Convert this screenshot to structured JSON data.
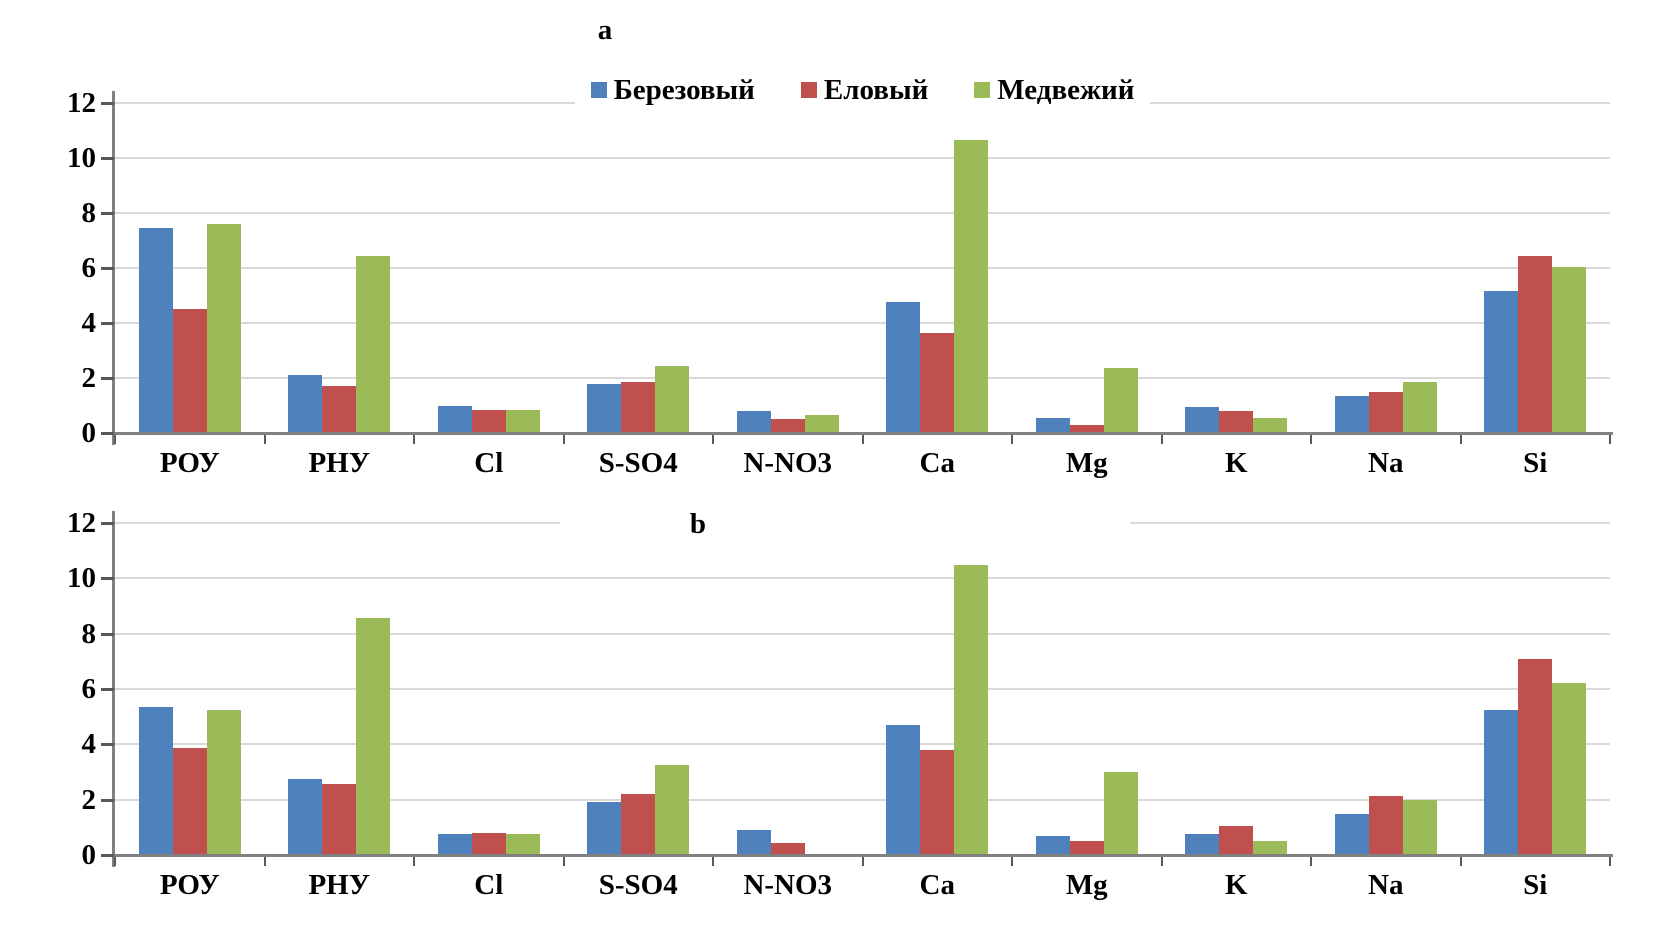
{
  "legend": {
    "items": [
      {
        "label": "Березовый",
        "color": "#4F81BD"
      },
      {
        "label": "Еловый",
        "color": "#C0504D"
      },
      {
        "label": "Медвежий",
        "color": "#9BBB59"
      }
    ]
  },
  "colors": {
    "bar_blue": "#4F81BD",
    "bar_red": "#C0504D",
    "bar_green": "#9BBB59",
    "gridline": "#D9D9D9",
    "axis_line": "#808080",
    "tick": "#595959",
    "text": "#000000"
  },
  "chart_data": [
    {
      "type": "bar",
      "title": "a",
      "categories": [
        "РОУ",
        "РНУ",
        "Cl",
        "S-SO4",
        "N-NO3",
        "Ca",
        "Mg",
        "K",
        "Na",
        "Si"
      ],
      "series": [
        {
          "name": "Березовый",
          "color": "#4F81BD",
          "values": [
            7.45,
            2.1,
            1.0,
            1.8,
            0.8,
            4.75,
            0.55,
            0.95,
            1.35,
            5.15
          ]
        },
        {
          "name": "Еловый",
          "color": "#C0504D",
          "values": [
            4.5,
            1.7,
            0.85,
            1.85,
            0.5,
            3.65,
            0.3,
            0.8,
            1.5,
            6.45
          ]
        },
        {
          "name": "Медвежий",
          "color": "#9BBB59",
          "values": [
            7.6,
            6.45,
            0.85,
            2.45,
            0.65,
            10.65,
            2.35,
            0.55,
            1.85,
            6.05
          ]
        }
      ],
      "xlabel": "",
      "ylabel": "",
      "ylim": [
        0,
        12
      ],
      "yticks": [
        0,
        2,
        4,
        6,
        8,
        10,
        12
      ],
      "grid": true,
      "legend_position": "top-center"
    },
    {
      "type": "bar",
      "title": "b",
      "categories": [
        "РОУ",
        "РНУ",
        "Cl",
        "S-SO4",
        "N-NO3",
        "Ca",
        "Mg",
        "K",
        "Na",
        "Si"
      ],
      "series": [
        {
          "name": "Березовый",
          "color": "#4F81BD",
          "values": [
            5.35,
            2.75,
            0.75,
            1.9,
            0.9,
            4.7,
            0.7,
            0.75,
            1.5,
            5.25
          ]
        },
        {
          "name": "Еловый",
          "color": "#C0504D",
          "values": [
            3.85,
            2.55,
            0.8,
            2.2,
            0.45,
            3.8,
            0.5,
            1.05,
            2.15,
            7.1
          ]
        },
        {
          "name": "Медвежий",
          "color": "#9BBB59",
          "values": [
            5.25,
            8.55,
            0.75,
            3.25,
            0,
            10.5,
            3.0,
            0.5,
            2.0,
            6.2
          ]
        }
      ],
      "xlabel": "",
      "ylabel": "",
      "ylim": [
        0,
        12
      ],
      "yticks": [
        0,
        2,
        4,
        6,
        8,
        10,
        12
      ],
      "grid": true,
      "legend_position": "none"
    }
  ]
}
